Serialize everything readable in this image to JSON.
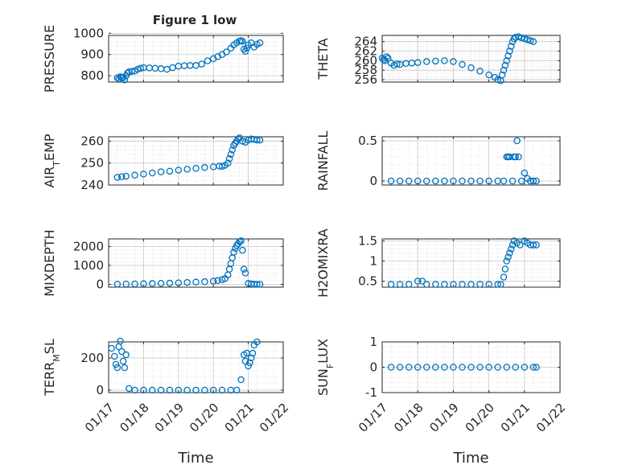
{
  "figure_title": "Figure 1 low",
  "colors": {
    "marker": "#0072bd",
    "axis": "#262626",
    "grid": "#c8c8c8",
    "minor_grid": "#dcdcdc"
  },
  "chart_data": [
    {
      "type": "scatter",
      "ylabel": "PRESSURE",
      "ylim": [
        770,
        990
      ],
      "yticks": [
        {
          "v": 800,
          "t": "800"
        },
        {
          "v": 900,
          "t": "900"
        },
        {
          "v": 1000,
          "t": "1000"
        }
      ],
      "xlim": [
        "01/17",
        "01/22"
      ],
      "xticks": [],
      "xlabel": "",
      "grid": true,
      "points": [
        [
          "01/17 06:00",
          790
        ],
        [
          "01/17 07:00",
          785
        ],
        [
          "01/17 08:00",
          795
        ],
        [
          "01/17 09:00",
          792
        ],
        [
          "01/17 10:00",
          790
        ],
        [
          "01/17 11:00",
          780
        ],
        [
          "01/17 12:00",
          800
        ],
        [
          "01/17 13:00",
          812
        ],
        [
          "01/17 14:00",
          818
        ],
        [
          "01/17 16:00",
          820
        ],
        [
          "01/17 18:00",
          822
        ],
        [
          "01/17 20:00",
          830
        ],
        [
          "01/17 22:00",
          835
        ],
        [
          "01/18 00:00",
          838
        ],
        [
          "01/18 04:00",
          837
        ],
        [
          "01/18 08:00",
          835
        ],
        [
          "01/18 12:00",
          833
        ],
        [
          "01/18 16:00",
          830
        ],
        [
          "01/18 20:00",
          838
        ],
        [
          "01/19 00:00",
          845
        ],
        [
          "01/19 04:00",
          847
        ],
        [
          "01/19 08:00",
          848
        ],
        [
          "01/19 12:00",
          848
        ],
        [
          "01/19 16:00",
          855
        ],
        [
          "01/19 20:00",
          870
        ],
        [
          "01/20 00:00",
          880
        ],
        [
          "01/20 03:00",
          890
        ],
        [
          "01/20 06:00",
          900
        ],
        [
          "01/20 09:00",
          912
        ],
        [
          "01/20 12:00",
          930
        ],
        [
          "01/20 14:00",
          945
        ],
        [
          "01/20 16:00",
          955
        ],
        [
          "01/20 18:00",
          963
        ],
        [
          "01/20 19:00",
          965
        ],
        [
          "01/20 20:00",
          962
        ],
        [
          "01/20 21:00",
          925
        ],
        [
          "01/20 22:00",
          915
        ],
        [
          "01/20 23:00",
          930
        ],
        [
          "01/21 00:00",
          945
        ],
        [
          "01/21 02:00",
          955
        ],
        [
          "01/21 04:00",
          935
        ],
        [
          "01/21 06:00",
          948
        ],
        [
          "01/21 08:00",
          955
        ]
      ]
    },
    {
      "type": "scatter",
      "ylabel": "THETA",
      "ylim": [
        255.5,
        265.3
      ],
      "yticks": [
        {
          "v": 256,
          "t": "256"
        },
        {
          "v": 258,
          "t": "258"
        },
        {
          "v": 260,
          "t": "260"
        },
        {
          "v": 262,
          "t": "262"
        },
        {
          "v": 264,
          "t": "264"
        }
      ],
      "xlim": [
        "01/17",
        "01/22"
      ],
      "xticks": [],
      "xlabel": "",
      "grid": true,
      "points": [
        [
          "01/17 00:00",
          260.5
        ],
        [
          "01/17 01:00",
          260.2
        ],
        [
          "01/17 02:00",
          260.0
        ],
        [
          "01/17 03:00",
          260.8
        ],
        [
          "01/17 04:00",
          260.5
        ],
        [
          "01/17 06:00",
          259.5
        ],
        [
          "01/17 08:00",
          259.0
        ],
        [
          "01/17 10:00",
          259.3
        ],
        [
          "01/17 12:00",
          259.2
        ],
        [
          "01/17 16:00",
          259.4
        ],
        [
          "01/17 20:00",
          259.5
        ],
        [
          "01/18 00:00",
          259.6
        ],
        [
          "01/18 06:00",
          259.8
        ],
        [
          "01/18 12:00",
          259.9
        ],
        [
          "01/18 18:00",
          260.0
        ],
        [
          "01/19 00:00",
          259.8
        ],
        [
          "01/19 06:00",
          259.2
        ],
        [
          "01/19 12:00",
          258.5
        ],
        [
          "01/19 18:00",
          257.8
        ],
        [
          "01/20 00:00",
          257.0
        ],
        [
          "01/20 04:00",
          256.5
        ],
        [
          "01/20 06:00",
          256.0
        ],
        [
          "01/20 08:00",
          255.8
        ],
        [
          "01/20 09:00",
          257.0
        ],
        [
          "01/20 10:00",
          258.0
        ],
        [
          "01/20 11:00",
          259.0
        ],
        [
          "01/20 12:00",
          260.0
        ],
        [
          "01/20 13:00",
          261.0
        ],
        [
          "01/20 14:00",
          262.0
        ],
        [
          "01/20 15:00",
          263.0
        ],
        [
          "01/20 16:00",
          264.0
        ],
        [
          "01/20 17:00",
          264.6
        ],
        [
          "01/20 18:00",
          264.9
        ],
        [
          "01/20 20:00",
          265.0
        ],
        [
          "01/20 22:00",
          264.8
        ],
        [
          "01/21 00:00",
          264.6
        ],
        [
          "01/21 02:00",
          264.4
        ],
        [
          "01/21 04:00",
          264.2
        ],
        [
          "01/21 06:00",
          264.0
        ]
      ]
    },
    {
      "type": "scatter",
      "ylabel": "AIR_TEMP",
      "ylim": [
        240,
        262
      ],
      "yticks": [
        {
          "v": 240,
          "t": "240"
        },
        {
          "v": 250,
          "t": "250"
        },
        {
          "v": 260,
          "t": "260"
        }
      ],
      "xlim": [
        "01/17",
        "01/22"
      ],
      "xticks": [],
      "xlabel": "",
      "grid": true,
      "points": [
        [
          "01/17 06:00",
          243.5
        ],
        [
          "01/17 09:00",
          243.8
        ],
        [
          "01/17 12:00",
          244.0
        ],
        [
          "01/17 18:00",
          244.5
        ],
        [
          "01/18 00:00",
          245.0
        ],
        [
          "01/18 06:00",
          245.5
        ],
        [
          "01/18 12:00",
          246.0
        ],
        [
          "01/18 18:00",
          246.3
        ],
        [
          "01/19 00:00",
          246.8
        ],
        [
          "01/19 06:00",
          247.2
        ],
        [
          "01/19 12:00",
          247.6
        ],
        [
          "01/19 18:00",
          248.0
        ],
        [
          "01/20 00:00",
          248.3
        ],
        [
          "01/20 04:00",
          248.6
        ],
        [
          "01/20 06:00",
          248.5
        ],
        [
          "01/20 08:00",
          249.0
        ],
        [
          "01/20 10:00",
          250.0
        ],
        [
          "01/20 11:00",
          252.0
        ],
        [
          "01/20 12:00",
          254.0
        ],
        [
          "01/20 13:00",
          256.0
        ],
        [
          "01/20 14:00",
          258.0
        ],
        [
          "01/20 15:00",
          259.0
        ],
        [
          "01/20 16:00",
          260.0
        ],
        [
          "01/20 17:00",
          261.0
        ],
        [
          "01/20 18:00",
          261.5
        ],
        [
          "01/20 20:00",
          260.0
        ],
        [
          "01/20 22:00",
          259.5
        ],
        [
          "01/21 00:00",
          260.5
        ],
        [
          "01/21 02:00",
          261.0
        ],
        [
          "01/21 04:00",
          260.8
        ],
        [
          "01/21 06:00",
          260.5
        ],
        [
          "01/21 08:00",
          260.5
        ]
      ]
    },
    {
      "type": "scatter",
      "ylabel": "RAINFALL",
      "ylim": [
        -0.05,
        0.55
      ],
      "yticks": [
        {
          "v": 0,
          "t": "0"
        },
        {
          "v": 0.5,
          "t": "0.5"
        }
      ],
      "xlim": [
        "01/17",
        "01/22"
      ],
      "xticks": [],
      "xlabel": "",
      "grid": true,
      "points": [
        [
          "01/17 06:00",
          0
        ],
        [
          "01/17 12:00",
          0
        ],
        [
          "01/17 18:00",
          0
        ],
        [
          "01/18 00:00",
          0
        ],
        [
          "01/18 06:00",
          0
        ],
        [
          "01/18 12:00",
          0
        ],
        [
          "01/18 18:00",
          0
        ],
        [
          "01/19 00:00",
          0
        ],
        [
          "01/19 06:00",
          0
        ],
        [
          "01/19 12:00",
          0
        ],
        [
          "01/19 18:00",
          0
        ],
        [
          "01/20 00:00",
          0
        ],
        [
          "01/20 06:00",
          0
        ],
        [
          "01/20 10:00",
          0
        ],
        [
          "01/20 12:00",
          0.3
        ],
        [
          "01/20 13:00",
          0.3
        ],
        [
          "01/20 14:00",
          0.3
        ],
        [
          "01/20 16:00",
          0
        ],
        [
          "01/20 17:00",
          0.3
        ],
        [
          "01/20 18:00",
          0.3
        ],
        [
          "01/20 19:00",
          0.5
        ],
        [
          "01/20 20:00",
          0.3
        ],
        [
          "01/20 22:00",
          0
        ],
        [
          "01/21 00:00",
          0.1
        ],
        [
          "01/21 02:00",
          0.03
        ],
        [
          "01/21 04:00",
          0
        ],
        [
          "01/21 06:00",
          0
        ],
        [
          "01/21 08:00",
          0
        ]
      ]
    },
    {
      "type": "scatter",
      "ylabel": "MIXDEPTH",
      "ylim": [
        -150,
        2400
      ],
      "yticks": [
        {
          "v": 0,
          "t": "0"
        },
        {
          "v": 1000,
          "t": "1000"
        },
        {
          "v": 2000,
          "t": "2000"
        }
      ],
      "xlim": [
        "01/17",
        "01/22"
      ],
      "xticks": [],
      "xlabel": "",
      "grid": true,
      "points": [
        [
          "01/17 06:00",
          10
        ],
        [
          "01/17 12:00",
          15
        ],
        [
          "01/17 18:00",
          20
        ],
        [
          "01/18 00:00",
          30
        ],
        [
          "01/18 06:00",
          40
        ],
        [
          "01/18 12:00",
          50
        ],
        [
          "01/18 18:00",
          60
        ],
        [
          "01/19 00:00",
          80
        ],
        [
          "01/19 06:00",
          100
        ],
        [
          "01/19 12:00",
          120
        ],
        [
          "01/19 18:00",
          140
        ],
        [
          "01/20 00:00",
          170
        ],
        [
          "01/20 03:00",
          200
        ],
        [
          "01/20 06:00",
          250
        ],
        [
          "01/20 08:00",
          300
        ],
        [
          "01/20 10:00",
          500
        ],
        [
          "01/20 11:00",
          800
        ],
        [
          "01/20 12:00",
          1100
        ],
        [
          "01/20 13:00",
          1400
        ],
        [
          "01/20 14:00",
          1700
        ],
        [
          "01/20 15:00",
          1900
        ],
        [
          "01/20 16:00",
          2050
        ],
        [
          "01/20 17:00",
          2150
        ],
        [
          "01/20 18:00",
          2250
        ],
        [
          "01/20 19:00",
          2300
        ],
        [
          "01/20 20:00",
          1800
        ],
        [
          "01/20 21:00",
          800
        ],
        [
          "01/20 22:00",
          600
        ],
        [
          "01/21 00:00",
          50
        ],
        [
          "01/21 02:00",
          20
        ],
        [
          "01/21 04:00",
          10
        ],
        [
          "01/21 06:00",
          0
        ],
        [
          "01/21 08:00",
          0
        ]
      ]
    },
    {
      "type": "scatter",
      "ylabel": "H2OMIXRA",
      "ylim": [
        0.35,
        1.55
      ],
      "yticks": [
        {
          "v": 0.5,
          "t": "0.5"
        },
        {
          "v": 1,
          "t": "1"
        },
        {
          "v": 1.5,
          "t": "1.5"
        }
      ],
      "xlim": [
        "01/17",
        "01/22"
      ],
      "xticks": [],
      "xlabel": "",
      "grid": true,
      "points": [
        [
          "01/17 06:00",
          0.42
        ],
        [
          "01/17 12:00",
          0.42
        ],
        [
          "01/17 18:00",
          0.42
        ],
        [
          "01/18 00:00",
          0.5
        ],
        [
          "01/18 03:00",
          0.5
        ],
        [
          "01/18 06:00",
          0.42
        ],
        [
          "01/18 12:00",
          0.42
        ],
        [
          "01/18 18:00",
          0.42
        ],
        [
          "01/19 00:00",
          0.42
        ],
        [
          "01/19 06:00",
          0.42
        ],
        [
          "01/19 12:00",
          0.42
        ],
        [
          "01/19 18:00",
          0.42
        ],
        [
          "01/20 00:00",
          0.42
        ],
        [
          "01/20 06:00",
          0.42
        ],
        [
          "01/20 08:00",
          0.42
        ],
        [
          "01/20 10:00",
          0.6
        ],
        [
          "01/20 11:00",
          0.8
        ],
        [
          "01/20 12:00",
          1.0
        ],
        [
          "01/20 13:00",
          1.1
        ],
        [
          "01/20 14:00",
          1.2
        ],
        [
          "01/20 15:00",
          1.3
        ],
        [
          "01/20 16:00",
          1.4
        ],
        [
          "01/20 17:00",
          1.5
        ],
        [
          "01/20 19:00",
          1.45
        ],
        [
          "01/20 21:00",
          1.4
        ],
        [
          "01/21 00:00",
          1.5
        ],
        [
          "01/21 02:00",
          1.45
        ],
        [
          "01/21 04:00",
          1.4
        ],
        [
          "01/21 06:00",
          1.4
        ],
        [
          "01/21 08:00",
          1.4
        ]
      ]
    },
    {
      "type": "scatter",
      "ylabel": "TERR_MSL",
      "ylim": [
        -15,
        300
      ],
      "yticks": [
        {
          "v": 0,
          "t": "0"
        },
        {
          "v": 200,
          "t": "200"
        }
      ],
      "xlim": [
        "01/17",
        "01/22"
      ],
      "xticks": [
        "01/17",
        "01/18",
        "01/19",
        "01/20",
        "01/21",
        "01/22"
      ],
      "xlabel": "Time",
      "grid": true,
      "points": [
        [
          "01/17 02:00",
          260
        ],
        [
          "01/17 04:00",
          210
        ],
        [
          "01/17 05:00",
          160
        ],
        [
          "01/17 06:00",
          140
        ],
        [
          "01/17 07:00",
          270
        ],
        [
          "01/17 08:00",
          305
        ],
        [
          "01/17 09:00",
          240
        ],
        [
          "01/17 10:00",
          180
        ],
        [
          "01/17 11:00",
          140
        ],
        [
          "01/17 12:00",
          220
        ],
        [
          "01/17 14:00",
          10
        ],
        [
          "01/17 18:00",
          0
        ],
        [
          "01/18 00:00",
          0
        ],
        [
          "01/18 06:00",
          0
        ],
        [
          "01/18 12:00",
          0
        ],
        [
          "01/18 18:00",
          0
        ],
        [
          "01/19 00:00",
          0
        ],
        [
          "01/19 06:00",
          0
        ],
        [
          "01/19 12:00",
          0
        ],
        [
          "01/19 18:00",
          0
        ],
        [
          "01/20 00:00",
          0
        ],
        [
          "01/20 06:00",
          0
        ],
        [
          "01/20 12:00",
          0
        ],
        [
          "01/20 16:00",
          0
        ],
        [
          "01/20 19:00",
          65
        ],
        [
          "01/20 21:00",
          220
        ],
        [
          "01/20 22:00",
          180
        ],
        [
          "01/20 23:00",
          230
        ],
        [
          "01/21 00:00",
          150
        ],
        [
          "01/21 01:00",
          170
        ],
        [
          "01/21 02:00",
          200
        ],
        [
          "01/21 03:00",
          230
        ],
        [
          "01/21 04:00",
          280
        ],
        [
          "01/21 06:00",
          300
        ]
      ]
    },
    {
      "type": "scatter",
      "ylabel": "SUN_FLUX",
      "ylim": [
        -1,
        1
      ],
      "yticks": [
        {
          "v": -1,
          "t": "-1"
        },
        {
          "v": 0,
          "t": "0"
        },
        {
          "v": 1,
          "t": "1"
        }
      ],
      "xlim": [
        "01/17",
        "01/22"
      ],
      "xticks": [
        "01/17",
        "01/18",
        "01/19",
        "01/20",
        "01/21",
        "01/22"
      ],
      "xlabel": "Time",
      "grid": true,
      "points": [
        [
          "01/17 06:00",
          0
        ],
        [
          "01/17 12:00",
          0
        ],
        [
          "01/17 18:00",
          0
        ],
        [
          "01/18 00:00",
          0
        ],
        [
          "01/18 06:00",
          0
        ],
        [
          "01/18 12:00",
          0
        ],
        [
          "01/18 18:00",
          0
        ],
        [
          "01/19 00:00",
          0
        ],
        [
          "01/19 06:00",
          0
        ],
        [
          "01/19 12:00",
          0
        ],
        [
          "01/19 18:00",
          0
        ],
        [
          "01/20 00:00",
          0
        ],
        [
          "01/20 06:00",
          0
        ],
        [
          "01/20 12:00",
          0
        ],
        [
          "01/20 18:00",
          0
        ],
        [
          "01/21 00:00",
          0
        ],
        [
          "01/21 06:00",
          0
        ],
        [
          "01/21 08:00",
          0
        ]
      ]
    }
  ]
}
